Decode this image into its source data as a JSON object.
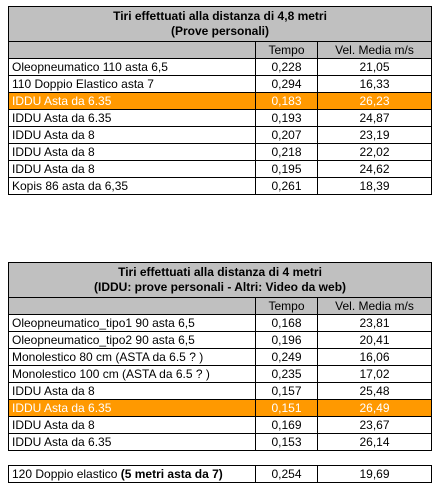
{
  "table1": {
    "title_line1": "Tiri effettuati alla distanza di 4,8 metri",
    "title_line2": "(Prove personali)",
    "headers": [
      "",
      "Tempo",
      "Vel. Media m/s"
    ],
    "rows": [
      {
        "name": "Oleopneumatico 110 asta 6,5",
        "tempo": "0,228",
        "vel": "21,05"
      },
      {
        "name": "110 Doppio Elastico asta 7",
        "tempo": "0,294",
        "vel": "16,33"
      },
      {
        "name": "IDDU Asta da 6.35",
        "tempo": "0,183",
        "vel": "26,23",
        "highlight": true
      },
      {
        "name": "IDDU Asta da 6.35",
        "tempo": "0,193",
        "vel": "24,87"
      },
      {
        "name": "IDDU Asta da 8",
        "tempo": "0,207",
        "vel": "23,19"
      },
      {
        "name": "IDDU Asta da 8",
        "tempo": "0,218",
        "vel": "22,02"
      },
      {
        "name": "IDDU Asta da 8",
        "tempo": "0,195",
        "vel": "24,62"
      },
      {
        "name": "Kopis 86 asta da 6,35",
        "tempo": "0,261",
        "vel": "18,39"
      }
    ]
  },
  "table2": {
    "title_line1": "Tiri effettuati alla distanza di 4 metri",
    "title_line2": "(IDDU: prove personali - Altri: Video da web)",
    "headers": [
      "",
      "Tempo",
      "Vel. Media m/s"
    ],
    "rows": [
      {
        "name": "Oleopneumatico_tipo1 90 asta 6,5",
        "tempo": "0,168",
        "vel": "23,81"
      },
      {
        "name": "Oleopneumatico_tipo2 90 asta 6,5",
        "tempo": "0,196",
        "vel": "20,41"
      },
      {
        "name": "Monolestico 80 cm (ASTA da 6.5 ? )",
        "tempo": "0,249",
        "vel": "16,06"
      },
      {
        "name": "Monolestico 100 cm (ASTA da 6.5 ? )",
        "tempo": "0,235",
        "vel": "17,02"
      },
      {
        "name": "IDDU Asta da 8",
        "tempo": "0,157",
        "vel": "25,48"
      },
      {
        "name": "IDDU Asta da 6.35",
        "tempo": "0,151",
        "vel": "26,49",
        "highlight": true
      },
      {
        "name": "IDDU Asta da 8",
        "tempo": "0,169",
        "vel": "23,67"
      },
      {
        "name": "IDDU Asta da 6.35",
        "tempo": "0,153",
        "vel": "26,14"
      }
    ]
  },
  "table3": {
    "row": {
      "name_plain": "120 Doppio elastico ",
      "name_bold": "(5 metri asta da 7)",
      "tempo": "0,254",
      "vel": "19,69"
    }
  },
  "colors": {
    "highlight": "#ff9900",
    "header": "#c0c0c0"
  }
}
